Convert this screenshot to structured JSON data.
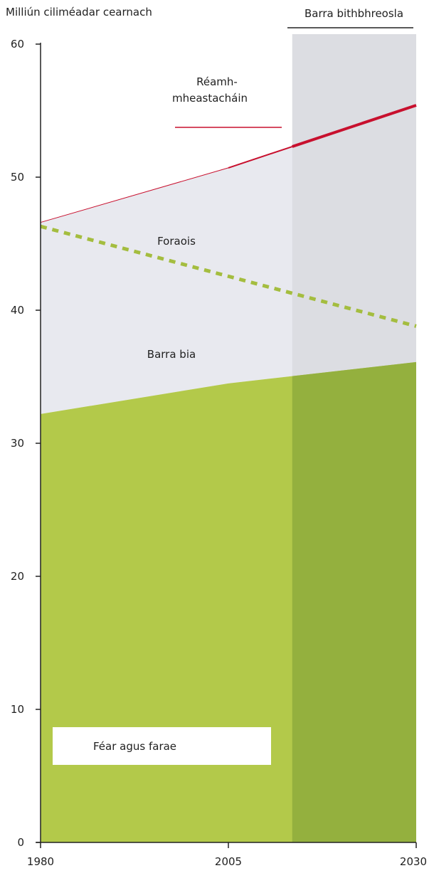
{
  "chart_data": {
    "type": "area",
    "ylabel": "Milliún ciliméadar cearnach",
    "xlim": [
      1980,
      2030
    ],
    "ylim": [
      0,
      60
    ],
    "x_ticks": [
      1980,
      2005,
      2030
    ],
    "x_tick_labels": [
      "1980",
      "2005",
      "2030"
    ],
    "y_ticks": [
      0,
      10,
      20,
      30,
      40,
      50,
      60
    ],
    "y_tick_labels": [
      "0",
      "10",
      "20",
      "30",
      "40",
      "50",
      "60"
    ],
    "grid": false,
    "series": [
      {
        "name": "Féar agus farae",
        "kind": "stacked-area",
        "x": [
          1980,
          2005,
          2030
        ],
        "values": [
          32.2,
          34.5,
          36.1
        ],
        "color": "#b3c94a"
      },
      {
        "name": "Barra bia",
        "kind": "stacked-area",
        "x": [
          1980,
          2005,
          2030
        ],
        "values": [
          46.6,
          50.7,
          55.4
        ],
        "color": "#e8e9ef"
      },
      {
        "name": "Foraois",
        "kind": "dotted-line",
        "x": [
          1980,
          2030
        ],
        "values": [
          46.3,
          38.8
        ],
        "color": "#a4bd3f"
      },
      {
        "name": "Réamh-\nmheastacháin",
        "kind": "line",
        "x": [
          1980,
          2005,
          2030
        ],
        "values": [
          46.6,
          50.7,
          55.4
        ],
        "color": "#c8102e"
      }
    ],
    "shaded_region": {
      "label": "Barra bithbhreosla",
      "x_range": [
        2013.5,
        2030
      ],
      "color": "#dcdde2"
    },
    "annotations": {
      "projection_label_line1": "Réamh-",
      "projection_label_line2": "mheastacháin",
      "forest_label": "Foraois",
      "food_crops_label": "Barra bia",
      "pasture_label": "Féar agus farae",
      "biofuel_label": "Barra bithbhreosla"
    },
    "colors": {
      "pasture": "#b3c94a",
      "pasture_dark": "#94b03e",
      "food": "#e8e9ef",
      "biofuel_band": "#dcdde2",
      "forest": "#a4bd3f",
      "projection": "#c8102e",
      "axis": "#222222"
    }
  }
}
